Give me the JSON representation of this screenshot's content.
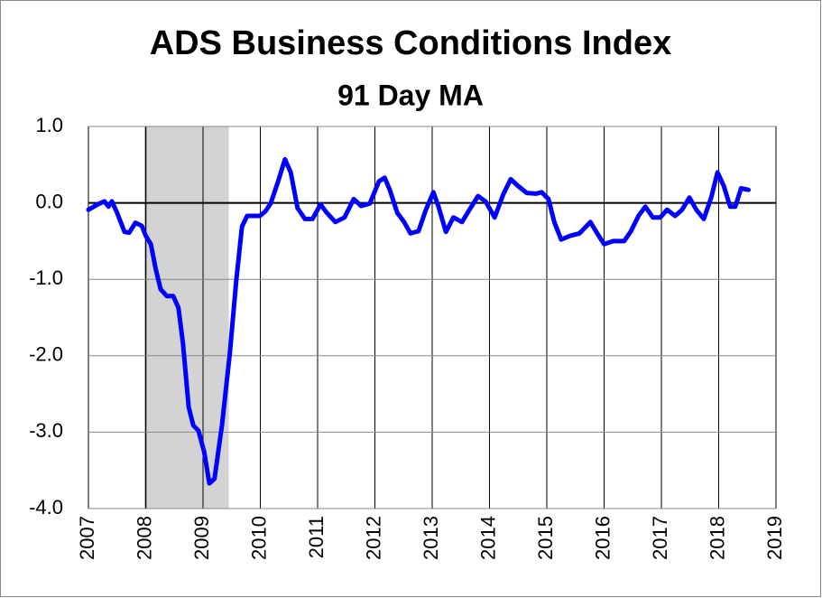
{
  "chart_data": {
    "type": "line",
    "title": "ADS Business Conditions Index",
    "subtitle": "91 Day MA",
    "color": "#0000ff",
    "grid": true,
    "recession": [
      2008.0,
      2009.45
    ],
    "recession_color": "#d3d3d3",
    "xlim": [
      2007,
      2019
    ],
    "xticks": [
      2007,
      2008,
      2009,
      2010,
      2011,
      2012,
      2013,
      2014,
      2015,
      2016,
      2017,
      2018,
      2019
    ],
    "ylim": [
      -4,
      1
    ],
    "yticks": [
      {
        "value": 1,
        "label": "1.0"
      },
      {
        "value": 0,
        "label": "0.0"
      },
      {
        "value": -1,
        "label": "-1.0"
      },
      {
        "value": -2,
        "label": "-2.0"
      },
      {
        "value": -3,
        "label": "-3.0"
      },
      {
        "value": -4,
        "label": "-4.0"
      }
    ],
    "x": [
      2007.0,
      2007.16,
      2007.28,
      2007.35,
      2007.41,
      2007.5,
      2007.63,
      2007.71,
      2007.82,
      2007.93,
      2008.0,
      2008.09,
      2008.17,
      2008.26,
      2008.37,
      2008.48,
      2008.57,
      2008.65,
      2008.75,
      2008.83,
      2008.92,
      2009.02,
      2009.11,
      2009.2,
      2009.33,
      2009.47,
      2009.58,
      2009.68,
      2009.77,
      2009.88,
      2009.99,
      2010.09,
      2010.18,
      2010.31,
      2010.43,
      2010.53,
      2010.65,
      2010.78,
      2010.91,
      2011.05,
      2011.16,
      2011.31,
      2011.47,
      2011.63,
      2011.76,
      2011.91,
      2012.07,
      2012.17,
      2012.26,
      2012.39,
      2012.51,
      2012.62,
      2012.76,
      2012.89,
      2013.02,
      2013.11,
      2013.24,
      2013.37,
      2013.52,
      2013.65,
      2013.8,
      2013.93,
      2014.09,
      2014.24,
      2014.37,
      2014.5,
      2014.65,
      2014.81,
      2014.91,
      2015.03,
      2015.13,
      2015.25,
      2015.41,
      2015.57,
      2015.76,
      2015.88,
      2016.0,
      2016.16,
      2016.35,
      2016.47,
      2016.6,
      2016.72,
      2016.85,
      2016.98,
      2017.1,
      2017.24,
      2017.36,
      2017.49,
      2017.61,
      2017.74,
      2017.87,
      2017.98,
      2018.09,
      2018.2,
      2018.29,
      2018.39,
      2018.52
    ],
    "values": [
      -0.09,
      -0.02,
      0.02,
      -0.05,
      0.02,
      -0.13,
      -0.38,
      -0.39,
      -0.26,
      -0.3,
      -0.43,
      -0.54,
      -0.85,
      -1.13,
      -1.22,
      -1.22,
      -1.37,
      -1.84,
      -2.67,
      -2.91,
      -2.98,
      -3.26,
      -3.67,
      -3.61,
      -2.91,
      -1.96,
      -1.02,
      -0.31,
      -0.17,
      -0.17,
      -0.17,
      -0.11,
      -0.01,
      0.28,
      0.57,
      0.4,
      -0.07,
      -0.21,
      -0.21,
      -0.02,
      -0.13,
      -0.25,
      -0.19,
      0.05,
      -0.04,
      -0.01,
      0.28,
      0.33,
      0.17,
      -0.13,
      -0.25,
      -0.4,
      -0.37,
      -0.09,
      0.14,
      -0.05,
      -0.38,
      -0.19,
      -0.25,
      -0.09,
      0.09,
      0.02,
      -0.19,
      0.11,
      0.31,
      0.22,
      0.13,
      0.12,
      0.14,
      0.05,
      -0.25,
      -0.48,
      -0.43,
      -0.4,
      -0.25,
      -0.4,
      -0.54,
      -0.5,
      -0.5,
      -0.37,
      -0.17,
      -0.05,
      -0.19,
      -0.19,
      -0.09,
      -0.17,
      -0.09,
      0.07,
      -0.09,
      -0.21,
      0.07,
      0.4,
      0.22,
      -0.05,
      -0.05,
      0.19,
      0.17
    ]
  }
}
